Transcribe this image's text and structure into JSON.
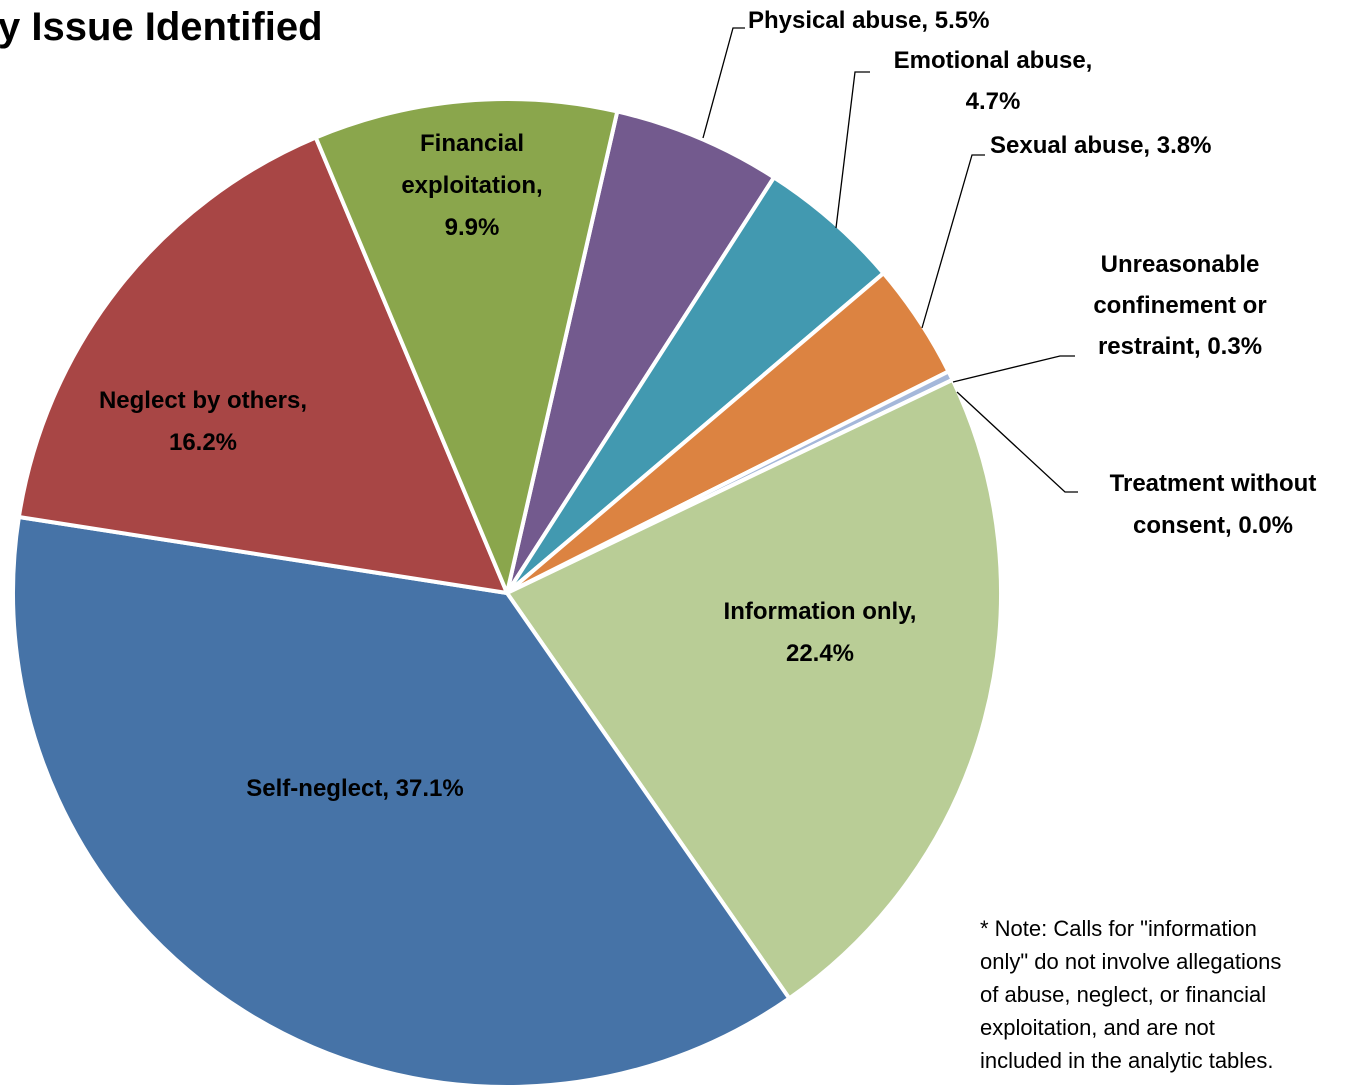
{
  "chart_data": {
    "type": "pie",
    "title": "y Issue Identified",
    "categories": [
      "Physical abuse",
      "Emotional abuse",
      "Sexual abuse",
      "Unreasonable confinement or restraint",
      "Treatment without consent",
      "Information only",
      "Self-neglect",
      "Neglect by others",
      "Financial exploitation"
    ],
    "values": [
      5.5,
      4.7,
      3.8,
      0.3,
      0.0,
      22.4,
      37.1,
      16.2,
      9.9
    ],
    "value_labels": [
      [
        "Physical abuse, 5.5%"
      ],
      [
        "Emotional abuse,",
        "4.7%"
      ],
      [
        "Sexual abuse, 3.8%"
      ],
      [
        "Unreasonable",
        "confinement or",
        "restraint, 0.3%"
      ],
      [
        "Treatment without",
        "consent, 0.0%"
      ],
      [
        "Information only,",
        "22.4%"
      ],
      [
        "Self-neglect, 37.1%"
      ],
      [
        "Neglect by others,",
        "16.2%"
      ],
      [
        "Financial",
        "exploitation,",
        "9.9%"
      ]
    ],
    "colors": [
      "#735a8e",
      "#4299b0",
      "#dc8341",
      "#a5b8da",
      "#6f8fc4",
      "#b9cd96",
      "#4673a7",
      "#a84645",
      "#8aa64c"
    ],
    "note": [
      "* Note: Calls for \"information",
      "only\" do not involve allegations",
      "of abuse, neglect, or financial",
      "exploitation, and are not",
      "included in the analytic tables."
    ]
  }
}
